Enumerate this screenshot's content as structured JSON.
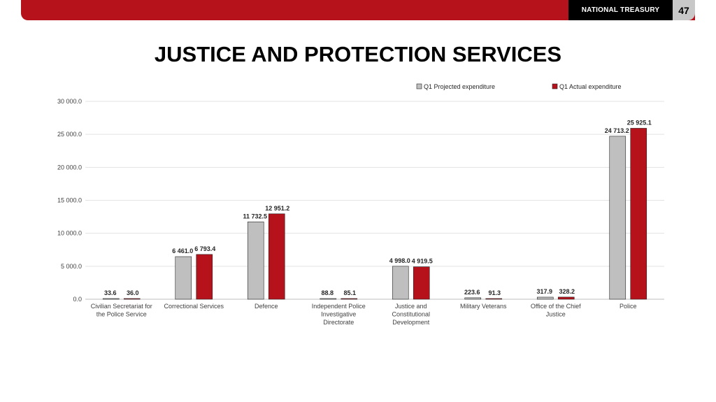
{
  "header": {
    "brand": "NATIONAL TREASURY",
    "page_number": "47",
    "accent_color": "#b5121b"
  },
  "title": "JUSTICE AND PROTECTION SERVICES",
  "chart_data": {
    "type": "bar",
    "title": "JUSTICE AND PROTECTION SERVICES",
    "xlabel": "",
    "ylabel": "",
    "ylim": [
      0,
      30000
    ],
    "yticks": [
      0,
      5000,
      10000,
      15000,
      20000,
      25000,
      30000
    ],
    "ytick_labels": [
      "0.0",
      "5 000.0",
      "10 000.0",
      "15 000.0",
      "20 000.0",
      "25 000.0",
      "30 000.0"
    ],
    "grid": true,
    "legend_position": "top-right",
    "categories": [
      [
        "Civilian Secretariat for",
        "the Police Service"
      ],
      [
        "Correctional Services"
      ],
      [
        "Defence"
      ],
      [
        "Independent Police",
        "Investigative",
        "Directorate"
      ],
      [
        "Justice and",
        "Constitutional",
        "Development"
      ],
      [
        "Military Veterans"
      ],
      [
        "Office of the Chief",
        "Justice"
      ],
      [
        "Police"
      ]
    ],
    "series": [
      {
        "name": "Q1 Projected expenditure",
        "color": "#bfbfbf",
        "values": [
          33.6,
          6461.0,
          11732.5,
          88.8,
          4998.0,
          223.6,
          317.9,
          24713.2
        ],
        "labels": [
          "33.6",
          "6 461.0",
          "11 732.5",
          "88.8",
          "4 998.0",
          "223.6",
          "317.9",
          "24 713.2"
        ]
      },
      {
        "name": "Q1 Actual expenditure",
        "color": "#b5121b",
        "values": [
          36.0,
          6793.4,
          12951.2,
          85.1,
          4919.5,
          91.3,
          328.2,
          25925.1
        ],
        "labels": [
          "36.0",
          "6 793.4",
          "12 951.2",
          "85.1",
          "4 919.5",
          "91.3",
          "328.2",
          "25 925.1"
        ]
      }
    ]
  }
}
